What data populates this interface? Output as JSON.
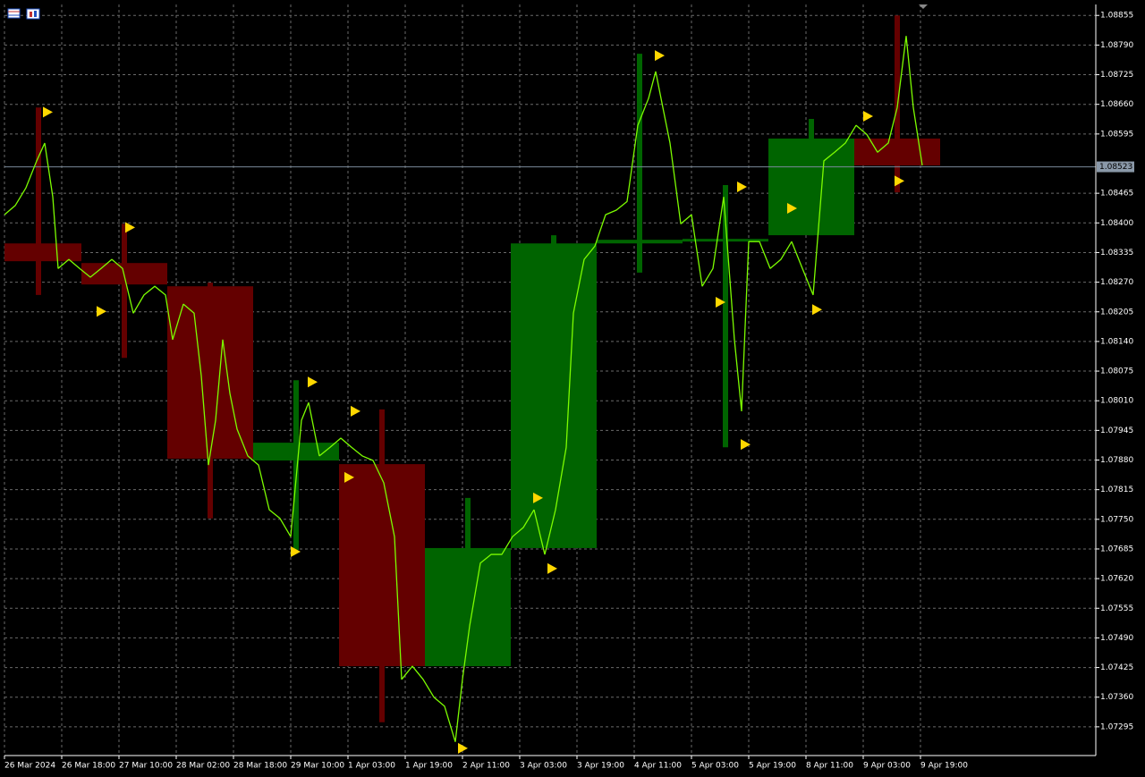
{
  "chart_data": {
    "type": "candlestick",
    "xlim": [
      0,
      305
    ],
    "ylim": [
      1.07232,
      1.08879
    ],
    "xticks": [
      {
        "value": 0,
        "label": "26 Mar 2024"
      },
      {
        "value": 16,
        "label": "26 Mar 18:00"
      },
      {
        "value": 32,
        "label": "27 Mar 10:00"
      },
      {
        "value": 48,
        "label": "28 Mar 02:00"
      },
      {
        "value": 64,
        "label": "28 Mar 18:00"
      },
      {
        "value": 80,
        "label": "29 Mar 10:00"
      },
      {
        "value": 96,
        "label": "1 Apr 03:00"
      },
      {
        "value": 112,
        "label": "1 Apr 19:00"
      },
      {
        "value": 128,
        "label": "2 Apr 11:00"
      },
      {
        "value": 144,
        "label": "3 Apr 03:00"
      },
      {
        "value": 160,
        "label": "3 Apr 19:00"
      },
      {
        "value": 176,
        "label": "4 Apr 11:00"
      },
      {
        "value": 192,
        "label": "5 Apr 03:00"
      },
      {
        "value": 208,
        "label": "5 Apr 19:00"
      },
      {
        "value": 224,
        "label": "8 Apr 11:00"
      },
      {
        "value": 240,
        "label": "9 Apr 03:00"
      },
      {
        "value": 256,
        "label": "9 Apr 19:00"
      }
    ],
    "yticks": [
      {
        "value": 1.08855,
        "label": "1.08855"
      },
      {
        "value": 1.0879,
        "label": "1.08790"
      },
      {
        "value": 1.08725,
        "label": "1.08725"
      },
      {
        "value": 1.0866,
        "label": "1.08660"
      },
      {
        "value": 1.08595,
        "label": "1.08595"
      },
      {
        "value": 1.08465,
        "label": "1.08465"
      },
      {
        "value": 1.084,
        "label": "1.08400"
      },
      {
        "value": 1.08335,
        "label": "1.08335"
      },
      {
        "value": 1.0827,
        "label": "1.08270"
      },
      {
        "value": 1.08205,
        "label": "1.08205"
      },
      {
        "value": 1.0814,
        "label": "1.08140"
      },
      {
        "value": 1.08075,
        "label": "1.08075"
      },
      {
        "value": 1.0801,
        "label": "1.08010"
      },
      {
        "value": 1.07945,
        "label": "1.07945"
      },
      {
        "value": 1.0788,
        "label": "1.07880"
      },
      {
        "value": 1.07815,
        "label": "1.07815"
      },
      {
        "value": 1.0775,
        "label": "1.07750"
      },
      {
        "value": 1.07685,
        "label": "1.07685"
      },
      {
        "value": 1.0762,
        "label": "1.07620"
      },
      {
        "value": 1.07555,
        "label": "1.07555"
      },
      {
        "value": 1.0749,
        "label": "1.07490"
      },
      {
        "value": 1.07425,
        "label": "1.07425"
      },
      {
        "value": 1.0736,
        "label": "1.07360"
      },
      {
        "value": 1.07295,
        "label": "1.07295"
      }
    ],
    "grid": true,
    "current_price": 1.08523,
    "candles": {
      "up_color": "#006400",
      "down_color": "#640000",
      "open_time": [
        -2.5,
        21.5,
        45.5,
        69.5,
        93.5,
        117.5,
        141.5,
        165.5,
        189.5,
        213.5,
        237.5
      ],
      "close_time": [
        21.5,
        45.5,
        69.5,
        93.5,
        117.5,
        141.5,
        165.5,
        189.5,
        213.5,
        237.5,
        261.5
      ],
      "open": [
        1.08355,
        1.08312,
        1.08261,
        1.07879,
        1.07871,
        1.07428,
        1.07687,
        1.08355,
        1.08363,
        1.08373,
        1.08585
      ],
      "high": [
        1.08653,
        1.08398,
        1.08269,
        1.08055,
        1.07991,
        1.07797,
        1.08373,
        1.08771,
        1.08483,
        1.08628,
        1.08855
      ],
      "low": [
        1.08242,
        1.08104,
        1.07752,
        1.07683,
        1.07305,
        1.07428,
        1.07687,
        1.08291,
        1.07908,
        1.08373,
        1.08467
      ],
      "close": [
        1.08316,
        1.08265,
        1.07883,
        1.07918,
        1.07428,
        1.07687,
        1.08355,
        1.08363,
        1.08365,
        1.08585,
        1.08526
      ]
    },
    "line": {
      "color": "#7cfc00",
      "x": [
        0,
        3,
        6,
        9,
        11.25,
        13.5,
        15,
        18,
        21,
        24,
        27,
        30,
        33,
        36,
        39,
        42,
        45,
        47,
        50,
        53,
        55,
        57,
        59,
        61,
        63,
        65,
        68,
        71,
        74,
        77,
        80,
        83,
        85,
        88,
        91,
        94,
        97,
        100,
        103,
        106,
        109,
        111,
        114,
        117,
        120,
        123,
        126,
        128,
        130,
        133,
        136,
        139,
        142,
        145,
        148,
        151,
        154,
        157,
        159,
        162,
        165,
        168,
        171,
        174,
        177,
        180,
        182,
        184,
        186,
        189,
        192,
        195,
        198,
        201,
        204,
        206,
        208,
        211,
        214,
        217,
        220,
        223,
        226,
        229,
        232,
        235,
        238,
        241,
        244,
        247,
        249.5,
        252,
        254,
        256.5
      ],
      "values": [
        1.08418,
        1.08438,
        1.08477,
        1.08536,
        1.08575,
        1.08457,
        1.083,
        1.0832,
        1.083,
        1.08281,
        1.083,
        1.0832,
        1.083,
        1.08202,
        1.08242,
        1.08261,
        1.08242,
        1.08144,
        1.08222,
        1.08202,
        1.08065,
        1.07869,
        1.07967,
        1.08144,
        1.08026,
        1.07948,
        1.07889,
        1.07869,
        1.07771,
        1.07752,
        1.07712,
        1.07967,
        1.08006,
        1.07889,
        1.07908,
        1.07928,
        1.07908,
        1.07889,
        1.07879,
        1.0783,
        1.07712,
        1.07399,
        1.07428,
        1.07399,
        1.0736,
        1.0734,
        1.07262,
        1.07399,
        1.07516,
        1.07654,
        1.07673,
        1.07673,
        1.07712,
        1.07732,
        1.07771,
        1.07673,
        1.07771,
        1.07908,
        1.08202,
        1.0832,
        1.08349,
        1.08418,
        1.08428,
        1.08447,
        1.08614,
        1.08673,
        1.08732,
        1.08653,
        1.08575,
        1.08398,
        1.08418,
        1.08261,
        1.083,
        1.08457,
        1.08144,
        1.07987,
        1.08359,
        1.08359,
        1.083,
        1.0832,
        1.08359,
        1.083,
        1.08242,
        1.08536,
        1.08555,
        1.08575,
        1.08614,
        1.08594,
        1.08555,
        1.08575,
        1.08653,
        1.0881,
        1.08653,
        1.08526
      ]
    },
    "markers": {
      "color": "#ffd700",
      "x": [
        10.75,
        25.75,
        33.75,
        80,
        84.75,
        95,
        96.75,
        126.75,
        147.75,
        151.75,
        181.75,
        198.75,
        204.75,
        205.75,
        218.75,
        225.75,
        240,
        248.75
      ],
      "values": [
        1.08643,
        1.08206,
        1.0839,
        1.07679,
        1.08051,
        1.07842,
        1.07987,
        1.07248,
        1.07797,
        1.07642,
        1.08767,
        1.08226,
        1.08479,
        1.07914,
        1.08432,
        1.0821,
        1.08634,
        1.08492
      ]
    }
  }
}
